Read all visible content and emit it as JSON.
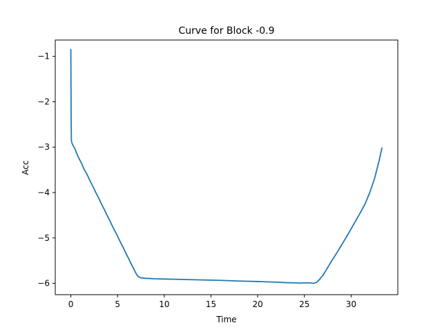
{
  "chart_data": {
    "type": "line",
    "title": "Curve for Block -0.9",
    "xlabel": "Time",
    "ylabel": "Acc",
    "xlim": [
      -1.67,
      35.0
    ],
    "ylim": [
      -6.25,
      -0.64
    ],
    "xticks": [
      0,
      5,
      10,
      15,
      20,
      25,
      30
    ],
    "yticks": [
      -1,
      -2,
      -3,
      -4,
      -5,
      -6
    ],
    "grid": false,
    "series": [
      {
        "color": "#1f77b4",
        "x": [
          0,
          0.03,
          0.06,
          0.1,
          0.2,
          0.4,
          0.6,
          0.8,
          1.0,
          1.2,
          1.4,
          1.6,
          1.8,
          2.0,
          2.2,
          2.4,
          2.6,
          2.8,
          3.0,
          3.2,
          3.4,
          3.6,
          3.8,
          4.0,
          4.2,
          4.4,
          4.6,
          4.8,
          5.0,
          5.2,
          5.4,
          5.6,
          5.8,
          6.0,
          6.2,
          6.4,
          6.6,
          6.8,
          7.0,
          7.2,
          7.5,
          8.0,
          9.0,
          10.0,
          12.0,
          14.0,
          16.0,
          18.0,
          20.0,
          22.0,
          23.0,
          24.0,
          24.5,
          25.0,
          25.5,
          25.8,
          26.0,
          26.3,
          26.6,
          27.0,
          27.5,
          28.0,
          28.5,
          29.0,
          29.5,
          30.0,
          30.5,
          31.0,
          31.5,
          32.0,
          32.5,
          33.0,
          33.3
        ],
        "y": [
          -0.85,
          -2.4,
          -2.85,
          -2.9,
          -2.95,
          -3.02,
          -3.12,
          -3.22,
          -3.3,
          -3.38,
          -3.48,
          -3.55,
          -3.63,
          -3.72,
          -3.8,
          -3.88,
          -3.97,
          -4.05,
          -4.13,
          -4.22,
          -4.3,
          -4.38,
          -4.47,
          -4.55,
          -4.63,
          -4.72,
          -4.8,
          -4.88,
          -4.96,
          -5.05,
          -5.13,
          -5.21,
          -5.3,
          -5.38,
          -5.46,
          -5.55,
          -5.63,
          -5.71,
          -5.79,
          -5.85,
          -5.88,
          -5.89,
          -5.9,
          -5.905,
          -5.915,
          -5.925,
          -5.935,
          -5.95,
          -5.96,
          -5.975,
          -5.985,
          -5.99,
          -5.995,
          -5.99,
          -5.99,
          -5.995,
          -6.0,
          -5.98,
          -5.92,
          -5.82,
          -5.65,
          -5.48,
          -5.32,
          -5.15,
          -4.98,
          -4.8,
          -4.62,
          -4.44,
          -4.25,
          -4.0,
          -3.7,
          -3.3,
          -3.02
        ]
      }
    ]
  }
}
